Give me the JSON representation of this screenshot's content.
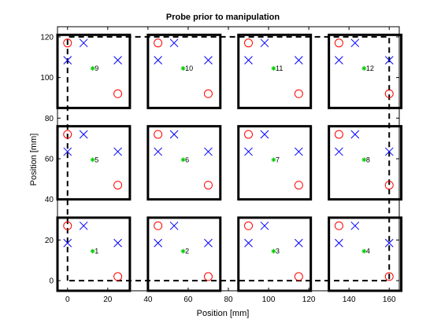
{
  "chart_data": {
    "type": "scatter",
    "title": "Probe prior to manipulation",
    "xlabel": "Position [mm]",
    "ylabel": "Position [mm]",
    "xlim": [
      -5,
      165
    ],
    "ylim": [
      -5,
      125
    ],
    "xticks": [
      0,
      20,
      40,
      60,
      80,
      100,
      120,
      140,
      160
    ],
    "yticks": [
      0,
      20,
      40,
      60,
      80,
      100,
      120
    ],
    "grid": false,
    "legend": "none",
    "colors": {
      "axes": "#000000",
      "circle": "#ff0000",
      "cross": "#0000ff",
      "star": "#00cc00",
      "box": "#000000"
    },
    "devices": [
      {
        "label": "1",
        "x0": 0,
        "y0": 0
      },
      {
        "label": "2",
        "x0": 45,
        "y0": 0
      },
      {
        "label": "3",
        "x0": 90,
        "y0": 0
      },
      {
        "label": "4",
        "x0": 135,
        "y0": 0
      },
      {
        "label": "5",
        "x0": 0,
        "y0": 45
      },
      {
        "label": "6",
        "x0": 45,
        "y0": 45
      },
      {
        "label": "7",
        "x0": 90,
        "y0": 45
      },
      {
        "label": "8",
        "x0": 135,
        "y0": 45
      },
      {
        "label": "9",
        "x0": 0,
        "y0": 90
      },
      {
        "label": "10",
        "x0": 45,
        "y0": 90
      },
      {
        "label": "11",
        "x0": 90,
        "y0": 90
      },
      {
        "label": "12",
        "x0": 135,
        "y0": 90
      }
    ],
    "device_box": {
      "dx": [
        -5,
        31
      ],
      "dy": [
        -5,
        31
      ]
    },
    "circle_offsets": [
      [
        0,
        27
      ],
      [
        25,
        2
      ]
    ],
    "cross_offsets": [
      [
        0,
        18.5
      ],
      [
        8,
        27
      ],
      [
        25,
        18.5
      ]
    ],
    "star_offset": [
      12.5,
      14.5
    ],
    "label_offset": [
      13.5,
      14.5
    ],
    "probe_path": {
      "x": [
        0,
        0,
        160,
        160,
        0
      ],
      "y": [
        0,
        120,
        120,
        0,
        0
      ]
    }
  }
}
